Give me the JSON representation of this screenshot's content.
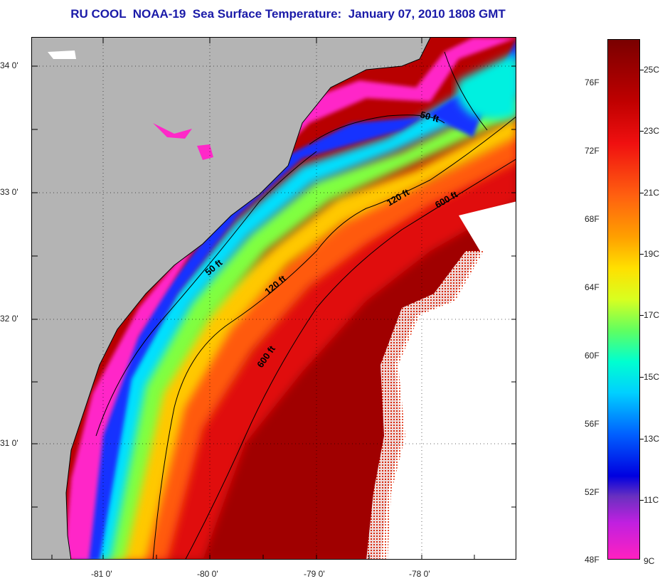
{
  "title": "RU COOL  NOAA-19  Sea Surface Temperature:  January 07, 2010 1808 GMT",
  "map": {
    "lat_labels": [
      "34 0'",
      "33 0'",
      "32 0'",
      "31 0'"
    ],
    "lon_labels": [
      "-81 0'",
      "-80 0'",
      "-79 0'",
      "-78 0'"
    ],
    "contours": [
      "50 ft",
      "120 ft",
      "600 ft"
    ],
    "contour_labels": [
      {
        "text": "50 ft",
        "id": "contour-50ft-north"
      },
      {
        "text": "120 ft",
        "id": "contour-120ft-north"
      },
      {
        "text": "600 ft",
        "id": "contour-600ft-north"
      },
      {
        "text": "50 ft",
        "id": "contour-50ft-south"
      },
      {
        "text": "120 ft",
        "id": "contour-120ft-south"
      },
      {
        "text": "600 ft",
        "id": "contour-600ft-south"
      }
    ],
    "land_color": "#b4b4b4",
    "cloud_color": "#ffffff"
  },
  "colorbar": {
    "fahrenheit_labels": [
      "76F",
      "72F",
      "68F",
      "64F",
      "60F",
      "56F",
      "52F",
      "48F"
    ],
    "celsius_labels": [
      "25C",
      "23C",
      "21C",
      "19C",
      "17C",
      "15C",
      "13C",
      "11C",
      "9C"
    ]
  }
}
